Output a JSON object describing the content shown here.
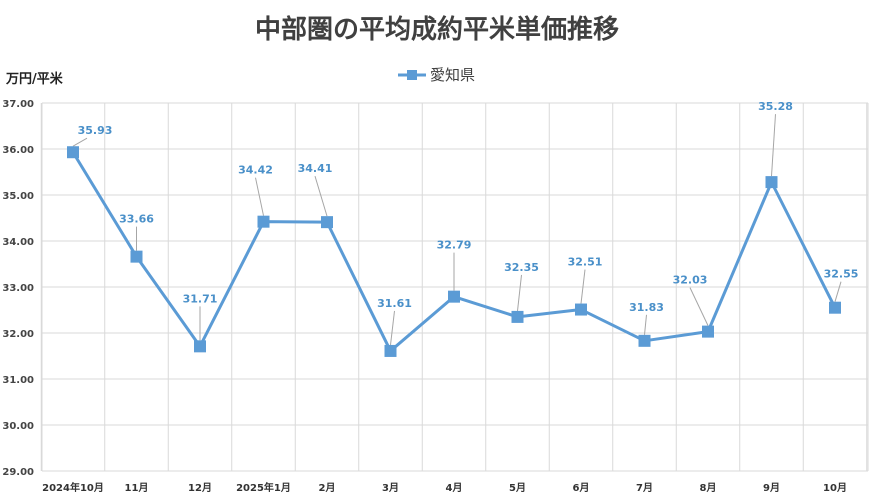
{
  "colors": {
    "series": "#5b9bd5",
    "marker": "#5b9bd5",
    "label": "#4a90c9",
    "grid": "#d9d9d9",
    "leader": "#a6a6a6"
  },
  "chart_data": {
    "type": "line",
    "title": "中部圏の平均成約平米単価推移",
    "xlabel": "",
    "ylabel": "万円/平米",
    "ylim": [
      29,
      37
    ],
    "yticks": [
      "29.00",
      "30.00",
      "31.00",
      "32.00",
      "33.00",
      "34.00",
      "35.00",
      "36.00",
      "37.00"
    ],
    "grid": true,
    "legend_position": "top-center",
    "categories": [
      "2024年10月",
      "11月",
      "12月",
      "2025年1月",
      "2月",
      "3月",
      "4月",
      "5月",
      "6月",
      "7月",
      "8月",
      "9月",
      "10月"
    ],
    "series": [
      {
        "name": "愛知県",
        "values": [
          35.93,
          33.66,
          31.71,
          34.42,
          34.41,
          31.61,
          32.79,
          32.35,
          32.51,
          31.83,
          32.03,
          35.28,
          32.55
        ],
        "labels": [
          "35.93",
          "33.66",
          "31.71",
          "34.42",
          "34.41",
          "31.61",
          "32.79",
          "32.35",
          "32.51",
          "31.83",
          "32.03",
          "35.28",
          "32.55"
        ]
      }
    ]
  }
}
